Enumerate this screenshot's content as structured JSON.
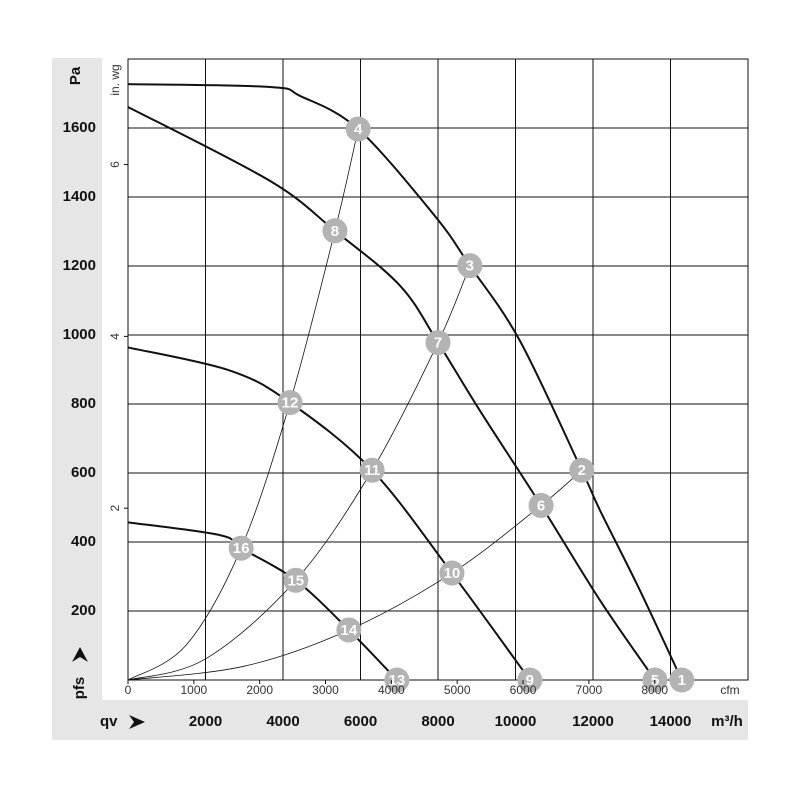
{
  "chart_data": {
    "type": "line",
    "y_label": "pfs",
    "y_unit": "Pa",
    "y2_unit": "in. wg",
    "x_label": "qv",
    "x_unit": "m³/h",
    "x2_unit": "cfm",
    "xlim": [
      0,
      16000
    ],
    "xticks": [
      2000,
      4000,
      6000,
      8000,
      10000,
      12000,
      14000
    ],
    "x2lim": [
      0,
      9417
    ],
    "x2ticks": [
      0,
      1000,
      2000,
      3000,
      4000,
      5000,
      6000,
      7000,
      8000
    ],
    "ylim": [
      0,
      1800
    ],
    "yticks": [
      200,
      400,
      600,
      800,
      1000,
      1200,
      1400,
      1600
    ],
    "y2lim": [
      0,
      7.229
    ],
    "y2ticks": [
      2,
      4,
      6
    ],
    "grid": true,
    "series": [
      {
        "color": "#111111",
        "width": 2,
        "x": [
          0,
          3660,
          4440,
          5940,
          7920,
          8820,
          10110,
          11710,
          12180,
          13210,
          14290
        ],
        "values": [
          1727,
          1719,
          1693,
          1597,
          1345,
          1201,
          984,
          608,
          492,
          260,
          0
        ]
      },
      {
        "color": "#111111",
        "width": 2,
        "x": [
          0,
          3660,
          5340,
          7020,
          8000,
          9080,
          10660,
          12180,
          13600
        ],
        "values": [
          1661,
          1447,
          1302,
          1143,
          978,
          781,
          506,
          231,
          0
        ]
      },
      {
        "color": "#111111",
        "width": 2,
        "x": [
          0,
          2630,
          4180,
          6300,
          8360,
          10370
        ],
        "values": [
          964,
          897,
          804,
          608,
          310,
          0
        ]
      },
      {
        "color": "#111111",
        "width": 2,
        "x": [
          0,
          2370,
          2920,
          4330,
          5700,
          6940
        ],
        "values": [
          457,
          420,
          382,
          289,
          145,
          0
        ]
      },
      {
        "color": "#111111",
        "width": 0.8,
        "x": [
          0,
          1500,
          2920,
          4180,
          5340,
          5940
        ],
        "values": [
          0,
          101,
          382,
          804,
          1302,
          1597
        ]
      },
      {
        "color": "#111111",
        "width": 0.8,
        "x": [
          0,
          2000,
          4330,
          6300,
          8000,
          8820
        ],
        "values": [
          0,
          61,
          289,
          608,
          978,
          1201
        ]
      },
      {
        "color": "#111111",
        "width": 0.8,
        "x": [
          0,
          3000,
          5700,
          8360,
          10660,
          11710
        ],
        "values": [
          0,
          40,
          145,
          310,
          506,
          608
        ]
      }
    ],
    "marker_color": "#b3b3b3",
    "points": [
      {
        "label": "1",
        "x": 14290,
        "y": 0
      },
      {
        "label": "2",
        "x": 11710,
        "y": 608
      },
      {
        "label": "3",
        "x": 8820,
        "y": 1201
      },
      {
        "label": "4",
        "x": 5940,
        "y": 1597
      },
      {
        "label": "5",
        "x": 13600,
        "y": 0
      },
      {
        "label": "6",
        "x": 10660,
        "y": 506
      },
      {
        "label": "7",
        "x": 8000,
        "y": 978
      },
      {
        "label": "8",
        "x": 5340,
        "y": 1302
      },
      {
        "label": "9",
        "x": 10370,
        "y": 0
      },
      {
        "label": "10",
        "x": 8360,
        "y": 310
      },
      {
        "label": "11",
        "x": 6300,
        "y": 608
      },
      {
        "label": "12",
        "x": 4180,
        "y": 804
      },
      {
        "label": "13",
        "x": 6940,
        "y": 0
      },
      {
        "label": "14",
        "x": 5700,
        "y": 145
      },
      {
        "label": "15",
        "x": 4330,
        "y": 289
      },
      {
        "label": "16",
        "x": 2920,
        "y": 382
      }
    ]
  }
}
